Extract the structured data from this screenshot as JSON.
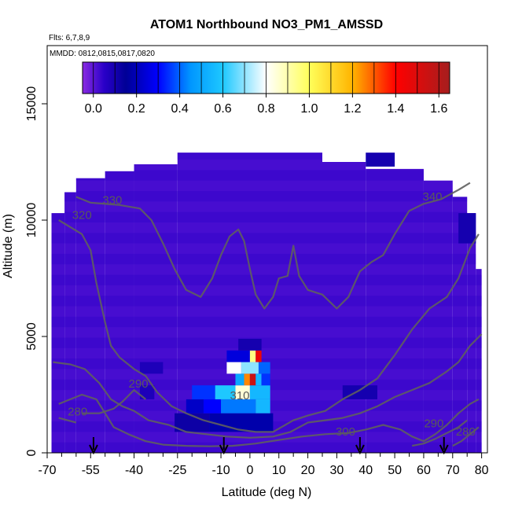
{
  "chart_data": {
    "type": "heatmap",
    "title": "ATOM1 Northbound NO3_PM1_AMSSD",
    "flights_note": "Flts: 6,7,8,9",
    "dates_note": "MMDD: 0812,0815,0817,0820",
    "xlabel": "Latitude (deg N)",
    "ylabel": "Altitude (m)",
    "xlim": [
      -70,
      82
    ],
    "ylim": [
      0,
      17500
    ],
    "x_ticks": [
      -70,
      -55,
      -40,
      -25,
      -10,
      0,
      10,
      20,
      30,
      40,
      50,
      60,
      70,
      80
    ],
    "x_tick_labels": [
      "-70",
      "-55",
      "-40",
      "-25",
      "-10",
      "0",
      "10",
      "20",
      "30",
      "40",
      "50",
      "60",
      "70",
      "80"
    ],
    "x_minor_ticks": [
      -65,
      -60,
      -50,
      -45,
      -35,
      -30,
      -20,
      -15,
      -5,
      5,
      15,
      25,
      35,
      45,
      55,
      65,
      75
    ],
    "y_ticks": [
      0,
      5000,
      10000,
      15000
    ],
    "y_tick_labels": [
      "0",
      "5000",
      "10000",
      "15000"
    ],
    "colorbar": {
      "range": [
        -0.05,
        1.65
      ],
      "ticks": [
        0.0,
        0.2,
        0.4,
        0.6,
        0.8,
        1.0,
        1.2,
        1.4,
        1.6
      ],
      "tick_labels": [
        "0.0",
        "0.2",
        "0.4",
        "0.6",
        "0.8",
        "1.0",
        "1.2",
        "1.4",
        "1.6"
      ],
      "stops": [
        {
          "v": -0.05,
          "c": "#8a2be2"
        },
        {
          "v": 0.05,
          "c": "#2a00c8"
        },
        {
          "v": 0.15,
          "c": "#000096"
        },
        {
          "v": 0.3,
          "c": "#0000ff"
        },
        {
          "v": 0.45,
          "c": "#0096ff"
        },
        {
          "v": 0.6,
          "c": "#1ec8ff"
        },
        {
          "v": 0.8,
          "c": "#ffffff"
        },
        {
          "v": 1.0,
          "c": "#ffff5a"
        },
        {
          "v": 1.2,
          "c": "#ffb400"
        },
        {
          "v": 1.4,
          "c": "#ff0000"
        },
        {
          "v": 1.65,
          "c": "#a51e1e"
        }
      ]
    },
    "background_value": 0.02,
    "columns": [
      {
        "x0": -68.5,
        "x1": -64,
        "top": 10300
      },
      {
        "x0": -64,
        "x1": -60,
        "top": 11200
      },
      {
        "x0": -60,
        "x1": -50,
        "top": 11800
      },
      {
        "x0": -50,
        "x1": -40,
        "top": 12100
      },
      {
        "x0": -40,
        "x1": -25,
        "top": 12400
      },
      {
        "x0": -25,
        "x1": 25,
        "top": 12900
      },
      {
        "x0": 25,
        "x1": 40,
        "top": 12500
      },
      {
        "x0": 40,
        "x1": 60,
        "top": 12200
      },
      {
        "x0": 60,
        "x1": 70,
        "top": 11700
      },
      {
        "x0": 70,
        "x1": 75,
        "top": 11000
      },
      {
        "x0": 75,
        "x1": 78,
        "top": 10300
      },
      {
        "x0": 78,
        "x1": 80,
        "top": 7900
      }
    ],
    "patches": [
      {
        "x0": -26,
        "x1": -14,
        "y0": 900,
        "y1": 1700,
        "v": 0.12
      },
      {
        "x0": -14,
        "x1": 8,
        "y0": 900,
        "y1": 1700,
        "v": 0.18
      },
      {
        "x0": -22,
        "x1": -16,
        "y0": 1700,
        "y1": 2300,
        "v": 0.22
      },
      {
        "x0": -16,
        "x1": -10,
        "y0": 1700,
        "y1": 2300,
        "v": 0.3
      },
      {
        "x0": -10,
        "x1": 2,
        "y0": 1700,
        "y1": 2300,
        "v": 0.42
      },
      {
        "x0": 2,
        "x1": 7,
        "y0": 1700,
        "y1": 2300,
        "v": 0.55
      },
      {
        "x0": -20,
        "x1": -12,
        "y0": 2300,
        "y1": 2900,
        "v": 0.35
      },
      {
        "x0": -12,
        "x1": -5,
        "y0": 2300,
        "y1": 2900,
        "v": 0.6
      },
      {
        "x0": -5,
        "x1": 0,
        "y0": 2300,
        "y1": 2900,
        "v": 0.85
      },
      {
        "x0": 0,
        "x1": 7,
        "y0": 2300,
        "y1": 2900,
        "v": 0.55
      },
      {
        "x0": -5,
        "x1": -2,
        "y0": 2900,
        "y1": 3400,
        "v": 0.5
      },
      {
        "x0": -2,
        "x1": 0,
        "y0": 2900,
        "y1": 3400,
        "v": 1.25
      },
      {
        "x0": 0,
        "x1": 2,
        "y0": 2900,
        "y1": 3400,
        "v": 1.55
      },
      {
        "x0": 2,
        "x1": 4,
        "y0": 2900,
        "y1": 3400,
        "v": 0.55
      },
      {
        "x0": 4,
        "x1": 7,
        "y0": 2900,
        "y1": 3400,
        "v": 0.35
      },
      {
        "x0": -8,
        "x1": -3,
        "y0": 3400,
        "y1": 3900,
        "v": 0.8
      },
      {
        "x0": -3,
        "x1": 3,
        "y0": 3400,
        "y1": 3900,
        "v": 0.7
      },
      {
        "x0": 3,
        "x1": 7,
        "y0": 3400,
        "y1": 3900,
        "v": 0.4
      },
      {
        "x0": -8,
        "x1": 0,
        "y0": 3900,
        "y1": 4400,
        "v": 0.25
      },
      {
        "x0": 0,
        "x1": 2,
        "y0": 3900,
        "y1": 4400,
        "v": 0.95
      },
      {
        "x0": 2,
        "x1": 4,
        "y0": 3900,
        "y1": 4400,
        "v": 1.45
      },
      {
        "x0": -38,
        "x1": -30,
        "y0": 3400,
        "y1": 3900,
        "v": 0.08
      },
      {
        "x0": -38,
        "x1": -33,
        "y0": 2300,
        "y1": 2900,
        "v": 0.08
      },
      {
        "x0": 32,
        "x1": 44,
        "y0": 2300,
        "y1": 2900,
        "v": 0.1
      },
      {
        "x0": 40,
        "x1": 50,
        "y0": 12300,
        "y1": 12900,
        "v": 0.1
      },
      {
        "x0": -4,
        "x1": 4,
        "y0": 4400,
        "y1": 4900,
        "v": 0.1
      },
      {
        "x0": 72,
        "x1": 78,
        "y0": 9000,
        "y1": 10300,
        "v": 0.1
      }
    ],
    "contours": [
      {
        "label": "330",
        "label_at": [
          -47.5,
          10700
        ],
        "points": [
          [
            -60,
            11000
          ],
          [
            -55,
            10750
          ],
          [
            -45,
            10650
          ],
          [
            -38,
            10500
          ],
          [
            -34,
            10000
          ],
          [
            -30,
            9000
          ],
          [
            -26,
            7900
          ],
          [
            -22,
            7000
          ],
          [
            -17,
            6700
          ],
          [
            -13,
            7500
          ],
          [
            -10,
            8500
          ],
          [
            -7,
            9300
          ],
          [
            -4,
            9600
          ],
          [
            -2,
            9100
          ],
          [
            0,
            7900
          ],
          [
            2,
            6800
          ],
          [
            5,
            6200
          ],
          [
            8,
            6700
          ],
          [
            10,
            7500
          ],
          [
            13,
            7600
          ],
          [
            15,
            8900
          ],
          [
            17,
            7600
          ],
          [
            20,
            7000
          ],
          [
            25,
            6800
          ],
          [
            30,
            6200
          ],
          [
            34,
            6700
          ],
          [
            38,
            7800
          ],
          [
            42,
            8200
          ],
          [
            46,
            8500
          ],
          [
            50,
            9400
          ],
          [
            55,
            10400
          ],
          [
            60,
            10700
          ],
          [
            66,
            10900
          ],
          [
            72,
            11300
          ],
          [
            76,
            11600
          ]
        ]
      },
      {
        "label": "340",
        "label_at": [
          63,
          10850
        ],
        "points": []
      },
      {
        "label": "320",
        "label_at": [
          -58,
          10050
        ],
        "points": [
          [
            -66,
            10000
          ],
          [
            -62,
            9700
          ],
          [
            -58,
            9400
          ],
          [
            -55,
            8700
          ],
          [
            -53,
            7300
          ],
          [
            -50,
            5600
          ],
          [
            -48,
            4600
          ],
          [
            -45,
            4100
          ],
          [
            -40,
            3600
          ],
          [
            -36,
            3300
          ],
          [
            -32,
            2600
          ],
          [
            -27,
            2000
          ],
          [
            -22,
            1700
          ],
          [
            -16,
            1400
          ],
          [
            -10,
            1200
          ],
          [
            -4,
            1000
          ],
          [
            2,
            900
          ],
          [
            8,
            900
          ],
          [
            15,
            1400
          ],
          [
            20,
            1600
          ],
          [
            26,
            1800
          ],
          [
            32,
            2300
          ],
          [
            38,
            2700
          ],
          [
            44,
            3200
          ],
          [
            50,
            4200
          ],
          [
            56,
            5300
          ],
          [
            62,
            6200
          ],
          [
            68,
            6700
          ],
          [
            72,
            7500
          ],
          [
            76,
            8800
          ],
          [
            79,
            9400
          ]
        ]
      },
      {
        "label": "310",
        "label_at": [
          -3.5,
          2300
        ],
        "points": [
          [
            -68,
            3900
          ],
          [
            -62,
            3800
          ],
          [
            -57,
            3600
          ],
          [
            -52,
            3000
          ],
          [
            -48,
            2300
          ],
          [
            -44,
            2000
          ],
          [
            -40,
            1800
          ],
          [
            -35,
            1400
          ],
          [
            -28,
            1200
          ],
          [
            -22,
            900
          ],
          [
            -15,
            800
          ],
          [
            -8,
            700
          ],
          [
            0,
            650
          ],
          [
            8,
            700
          ],
          [
            14,
            900
          ],
          [
            20,
            1300
          ],
          [
            26,
            1400
          ],
          [
            32,
            1500
          ],
          [
            38,
            1700
          ],
          [
            44,
            2000
          ],
          [
            50,
            2400
          ],
          [
            56,
            2700
          ],
          [
            62,
            3000
          ],
          [
            68,
            3500
          ],
          [
            72,
            3900
          ],
          [
            76,
            4600
          ],
          [
            80,
            5100
          ]
        ]
      },
      {
        "label": "300",
        "label_at": [
          33,
          750
        ],
        "points": [
          [
            -66,
            2100
          ],
          [
            -62,
            2300
          ],
          [
            -58,
            2500
          ],
          [
            -53,
            2300
          ],
          [
            -50,
            1700
          ],
          [
            -47,
            1100
          ],
          [
            -42,
            800
          ],
          [
            -36,
            500
          ],
          [
            -30,
            350
          ],
          [
            -22,
            300
          ],
          [
            -14,
            280
          ],
          [
            -6,
            300
          ],
          [
            2,
            400
          ],
          [
            10,
            550
          ],
          [
            18,
            700
          ],
          [
            26,
            800
          ],
          [
            34,
            850
          ],
          [
            40,
            1000
          ],
          [
            46,
            1200
          ],
          [
            52,
            1000
          ],
          [
            56,
            700
          ],
          [
            60,
            500
          ],
          [
            64,
            800
          ],
          [
            68,
            1200
          ],
          [
            72,
            1700
          ],
          [
            76,
            2100
          ],
          [
            79,
            2300
          ]
        ]
      },
      {
        "label": "290",
        "label_at": [
          -38.5,
          2800
        ],
        "points": [
          [
            -58,
            1700
          ],
          [
            -52,
            1700
          ],
          [
            -47,
            1900
          ],
          [
            -44,
            2200
          ],
          [
            -40,
            2700
          ],
          [
            -38,
            2500
          ],
          [
            -36,
            2300
          ]
        ]
      },
      {
        "label": "280",
        "label_at": [
          -59.5,
          1600
        ],
        "points": [
          [
            -66,
            1500
          ],
          [
            -63,
            1400
          ],
          [
            -60,
            1300
          ]
        ]
      },
      {
        "label": "290",
        "label_at": [
          63.5,
          1100
        ],
        "points": [
          [
            56,
            300
          ],
          [
            60,
            400
          ],
          [
            64,
            600
          ],
          [
            68,
            850
          ],
          [
            72,
            1100
          ],
          [
            75,
            1400
          ]
        ]
      },
      {
        "label": "280",
        "label_at": [
          74.5,
          750
        ],
        "points": [
          [
            70,
            300
          ],
          [
            73,
            500
          ],
          [
            76,
            800
          ],
          [
            79,
            1100
          ]
        ]
      }
    ],
    "arrows_latitudes": [
      -54,
      -9,
      38,
      67
    ]
  }
}
